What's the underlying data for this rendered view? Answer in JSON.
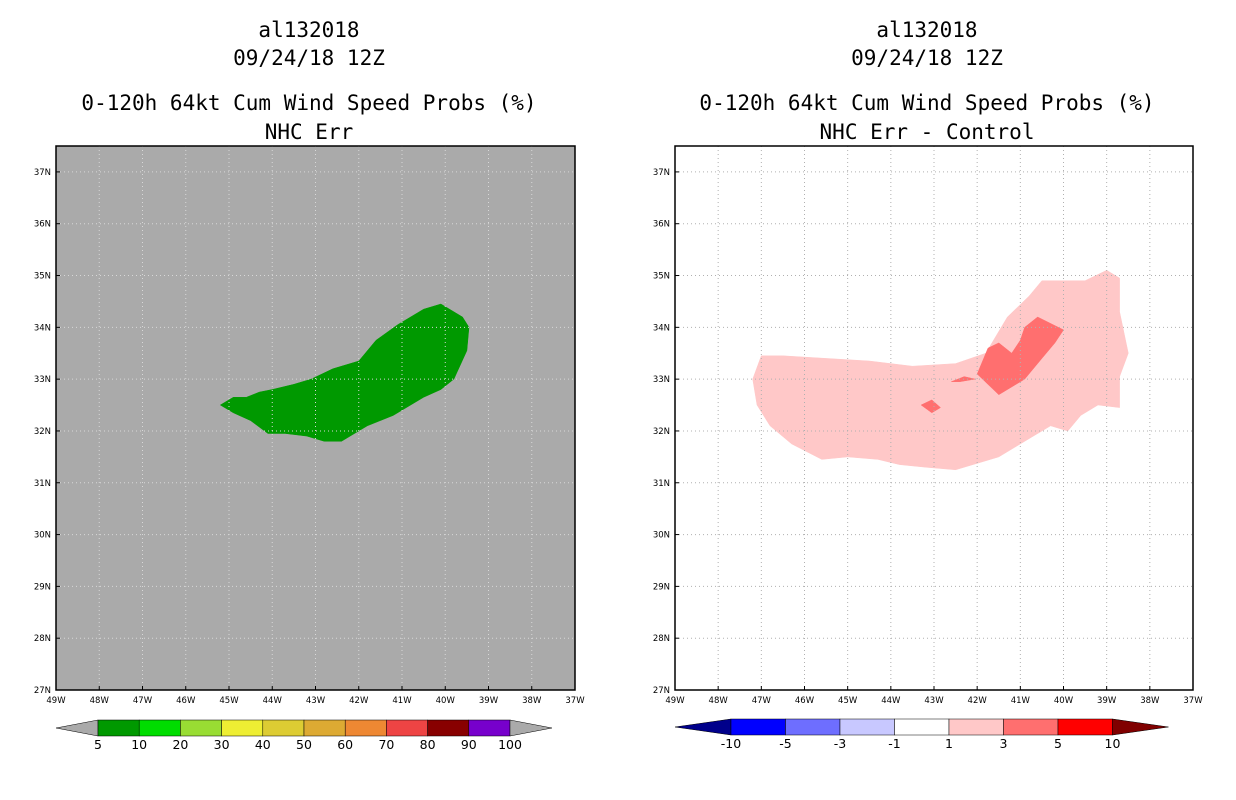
{
  "chart_data": [
    {
      "type": "contour-map",
      "title_lines": [
        "al132018",
        "09/24/18 12Z",
        "0-120h 64kt Cum Wind Speed Probs (%)",
        "NHC Err"
      ],
      "lat_ticks": [
        "27N",
        "28N",
        "29N",
        "30N",
        "31N",
        "32N",
        "33N",
        "34N",
        "35N",
        "36N",
        "37N"
      ],
      "lon_ticks": [
        "49W",
        "48W",
        "47W",
        "46W",
        "45W",
        "44W",
        "43W",
        "42W",
        "41W",
        "40W",
        "39W",
        "38W",
        "37W"
      ],
      "lat_range": [
        27,
        37.5
      ],
      "lon_range": [
        -49,
        -37
      ],
      "background_color": "#aaaaaa",
      "grid": true,
      "shapes": [
        {
          "level": "5-10",
          "color": "#009900",
          "points": [
            [
              -45.2,
              32.5
            ],
            [
              -44.9,
              32.65
            ],
            [
              -44.6,
              32.65
            ],
            [
              -44.3,
              32.75
            ],
            [
              -44.0,
              32.8
            ],
            [
              -43.5,
              32.9
            ],
            [
              -43.1,
              33.0
            ],
            [
              -42.6,
              33.2
            ],
            [
              -42.0,
              33.35
            ],
            [
              -41.6,
              33.75
            ],
            [
              -41.1,
              34.05
            ],
            [
              -40.5,
              34.35
            ],
            [
              -40.1,
              34.45
            ],
            [
              -39.6,
              34.2
            ],
            [
              -39.45,
              34.0
            ],
            [
              -39.5,
              33.55
            ],
            [
              -39.8,
              33.0
            ],
            [
              -40.1,
              32.8
            ],
            [
              -40.5,
              32.65
            ],
            [
              -41.2,
              32.3
            ],
            [
              -41.8,
              32.1
            ],
            [
              -42.4,
              31.8
            ],
            [
              -42.8,
              31.8
            ],
            [
              -43.2,
              31.9
            ],
            [
              -43.7,
              31.95
            ],
            [
              -44.1,
              31.95
            ],
            [
              -44.5,
              32.2
            ],
            [
              -44.9,
              32.35
            ]
          ]
        }
      ],
      "colorbar": {
        "labels": [
          "5",
          "10",
          "20",
          "30",
          "40",
          "50",
          "60",
          "70",
          "80",
          "90",
          "100"
        ],
        "colors": [
          "#009900",
          "#00dd00",
          "#99dd33",
          "#eeee33",
          "#ddcc33",
          "#ddaa33",
          "#ee8833",
          "#ee4444",
          "#880000",
          "#7700cc"
        ],
        "end_colors": [
          "#aaaaaa",
          "#aaaaaa"
        ]
      }
    },
    {
      "type": "contour-map",
      "title_lines": [
        "al132018",
        "09/24/18 12Z",
        "0-120h 64kt Cum Wind Speed Probs (%)",
        "NHC Err - Control"
      ],
      "lat_ticks": [
        "27N",
        "28N",
        "29N",
        "30N",
        "31N",
        "32N",
        "33N",
        "34N",
        "35N",
        "36N",
        "37N"
      ],
      "lon_ticks": [
        "49W",
        "48W",
        "47W",
        "46W",
        "45W",
        "44W",
        "43W",
        "42W",
        "41W",
        "40W",
        "39W",
        "38W",
        "37W"
      ],
      "lat_range": [
        27,
        37.5
      ],
      "lon_range": [
        -49,
        -37
      ],
      "background_color": "#ffffff",
      "grid": true,
      "shapes": [
        {
          "level": "1-3",
          "color": "#ffc8c8",
          "points": [
            [
              -47.2,
              33.0
            ],
            [
              -47.0,
              33.45
            ],
            [
              -46.5,
              33.45
            ],
            [
              -45.5,
              33.4
            ],
            [
              -44.5,
              33.35
            ],
            [
              -43.5,
              33.25
            ],
            [
              -42.5,
              33.3
            ],
            [
              -41.8,
              33.5
            ],
            [
              -41.3,
              34.2
            ],
            [
              -40.8,
              34.6
            ],
            [
              -40.5,
              34.9
            ],
            [
              -39.5,
              34.9
            ],
            [
              -39.0,
              35.1
            ],
            [
              -38.7,
              34.95
            ],
            [
              -38.7,
              34.3
            ],
            [
              -38.5,
              33.5
            ],
            [
              -38.7,
              33.05
            ],
            [
              -38.7,
              32.45
            ],
            [
              -39.2,
              32.5
            ],
            [
              -39.6,
              32.3
            ],
            [
              -39.9,
              32.0
            ],
            [
              -40.3,
              32.1
            ],
            [
              -40.8,
              31.85
            ],
            [
              -41.5,
              31.5
            ],
            [
              -42.5,
              31.25
            ],
            [
              -43.2,
              31.3
            ],
            [
              -43.8,
              31.35
            ],
            [
              -44.3,
              31.45
            ],
            [
              -45.0,
              31.5
            ],
            [
              -45.6,
              31.45
            ],
            [
              -46.3,
              31.75
            ],
            [
              -46.8,
              32.1
            ],
            [
              -47.1,
              32.5
            ]
          ]
        },
        {
          "level": "3-5",
          "color": "#ff6f6f",
          "points": [
            [
              -42.0,
              33.1
            ],
            [
              -41.75,
              33.6
            ],
            [
              -41.5,
              33.7
            ],
            [
              -41.2,
              33.5
            ],
            [
              -41.0,
              33.75
            ],
            [
              -40.9,
              34.0
            ],
            [
              -40.6,
              34.2
            ],
            [
              -40.0,
              33.95
            ],
            [
              -40.2,
              33.7
            ],
            [
              -40.5,
              33.4
            ],
            [
              -40.9,
              33.0
            ],
            [
              -41.5,
              32.7
            ]
          ]
        },
        {
          "level": "3-5",
          "color": "#ff6f6f",
          "points": [
            [
              -42.6,
              32.95
            ],
            [
              -42.3,
              33.05
            ],
            [
              -42.05,
              33.0
            ],
            [
              -42.4,
              32.95
            ]
          ]
        },
        {
          "level": "3-5",
          "color": "#ff6f6f",
          "points": [
            [
              -43.3,
              32.5
            ],
            [
              -43.05,
              32.6
            ],
            [
              -42.85,
              32.45
            ],
            [
              -43.05,
              32.35
            ]
          ]
        }
      ],
      "colorbar": {
        "labels": [
          "-10",
          "-5",
          "-3",
          "-1",
          "1",
          "3",
          "5",
          "10"
        ],
        "colors": [
          "#0000ff",
          "#6e6eff",
          "#c8c8ff",
          "#ffffff",
          "#ffc8c8",
          "#ff6f6f",
          "#ff0000"
        ],
        "end_colors": [
          "#00008b",
          "#800000"
        ]
      }
    }
  ]
}
